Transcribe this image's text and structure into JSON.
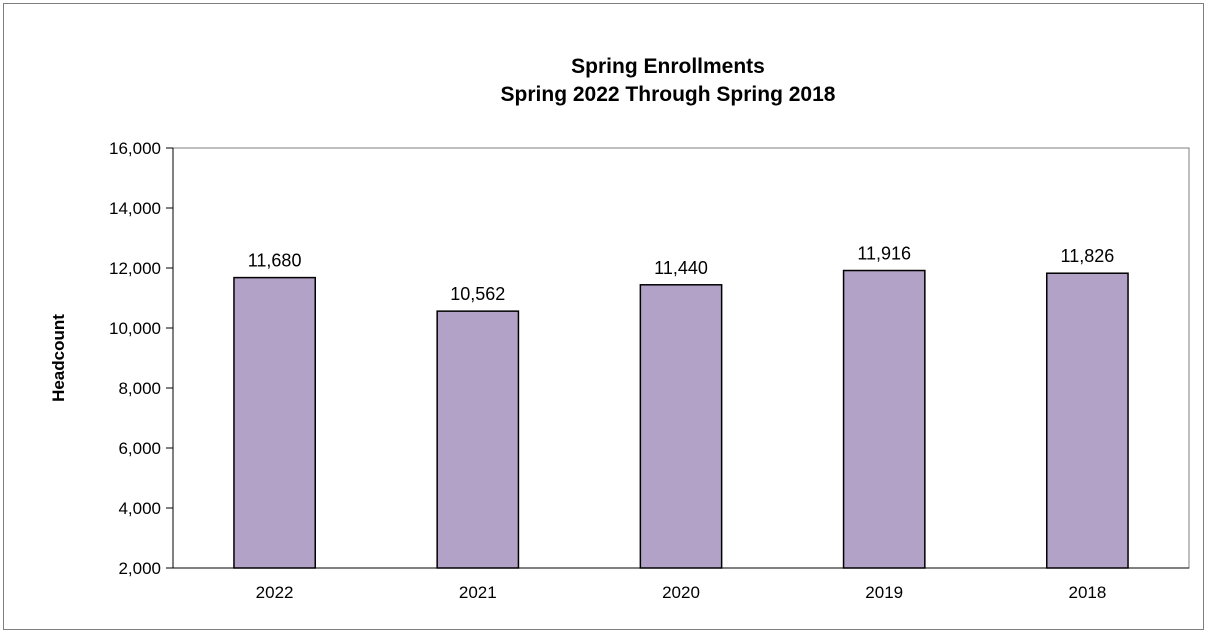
{
  "chart_data": {
    "type": "bar",
    "title": "Spring Enrollments",
    "subtitle": "Spring 2022 Through Spring 2018",
    "ylabel": "Headcount",
    "xlabel": "",
    "categories": [
      "2022",
      "2021",
      "2020",
      "2019",
      "2018"
    ],
    "values": [
      11680,
      10562,
      11440,
      11916,
      11826
    ],
    "value_labels": [
      "11,680",
      "10,562",
      "11,440",
      "11,916",
      "11,826"
    ],
    "ylim": [
      2000,
      16000
    ],
    "yticks": [
      2000,
      4000,
      6000,
      8000,
      10000,
      12000,
      14000,
      16000
    ],
    "ytick_labels": [
      "2,000",
      "4,000",
      "6,000",
      "8,000",
      "10,000",
      "12,000",
      "14,000",
      "16,000"
    ],
    "grid": false,
    "legend": "none",
    "bar_color": "#b3a2c7",
    "bar_edge_color": "#000000"
  }
}
